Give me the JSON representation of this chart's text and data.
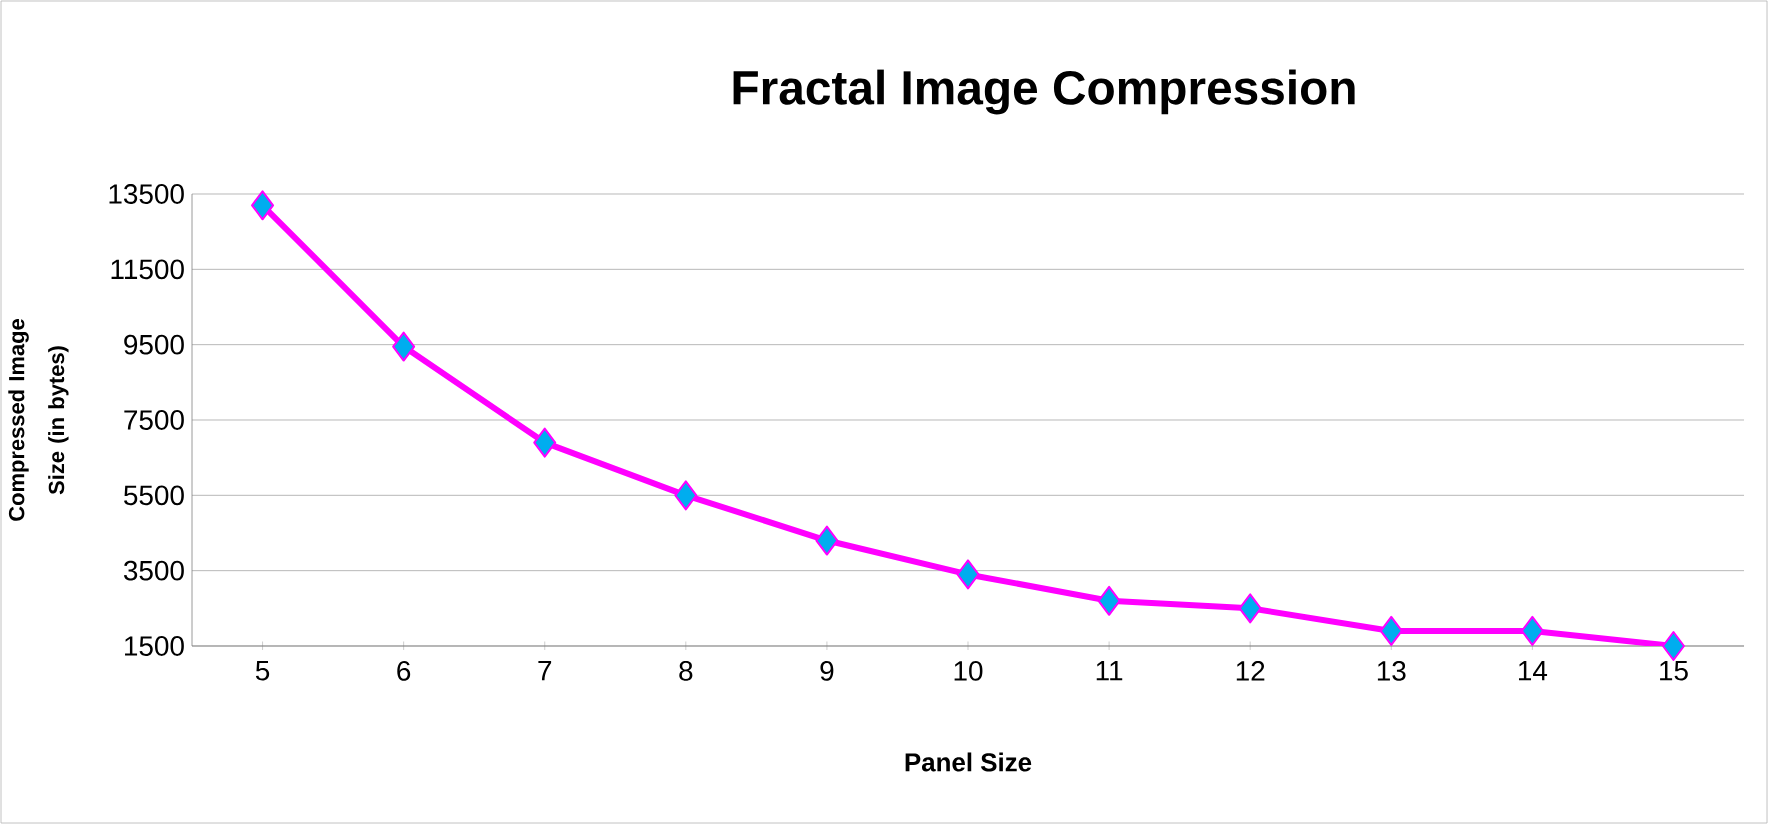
{
  "chart_data": {
    "type": "line",
    "title": "Fractal Image Compression",
    "xlabel": "Panel Size",
    "ylabel": "Compressed Image Size (in bytes)",
    "categories": [
      "5",
      "6",
      "7",
      "8",
      "9",
      "10",
      "11",
      "12",
      "13",
      "14",
      "15"
    ],
    "series": [
      {
        "color": "#ff00ff",
        "values": [
          13200,
          9450,
          6900,
          5500,
          4300,
          3400,
          2700,
          2500,
          1900,
          1900,
          1500
        ]
      }
    ],
    "ylim": [
      1500,
      13500
    ],
    "yticks": [
      1500,
      3500,
      5500,
      7500,
      9500,
      11500,
      13500
    ],
    "grid": "y",
    "marker": "diamond",
    "line_style": "solid"
  }
}
